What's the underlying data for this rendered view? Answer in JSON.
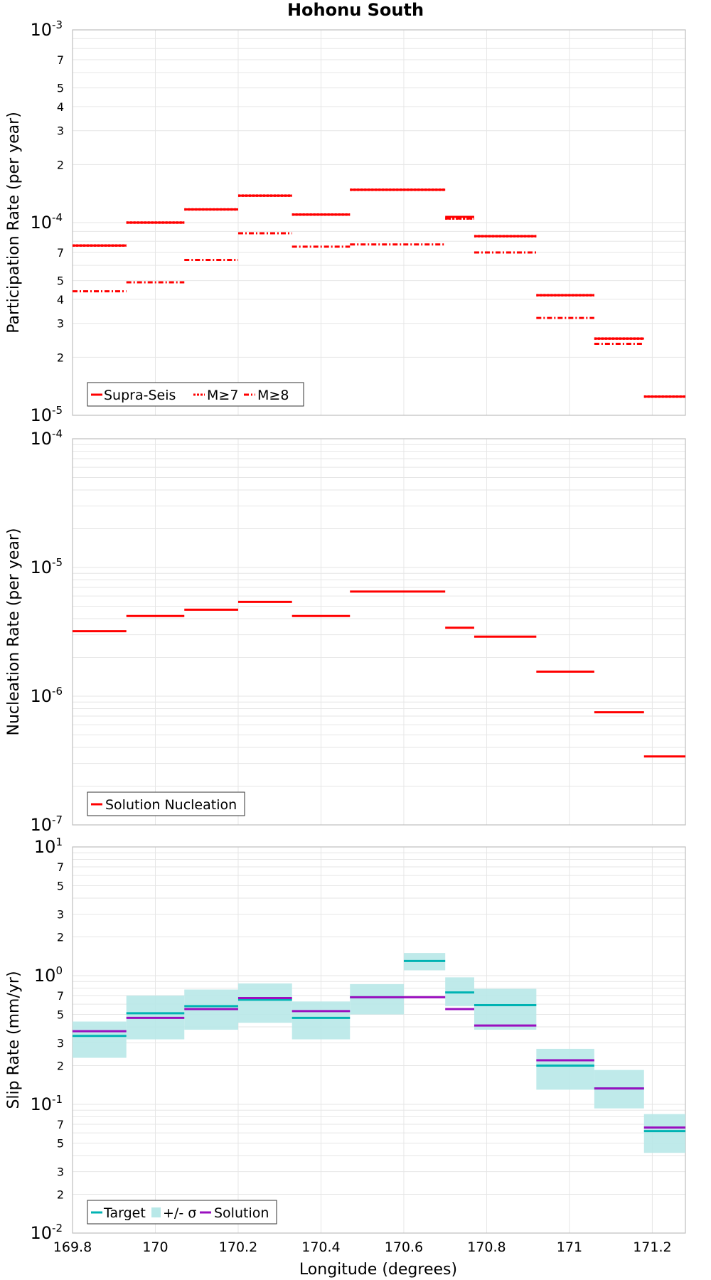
{
  "title": "Hohonu South",
  "xlabel": "Longitude (degrees)",
  "colors": {
    "supra": "#ff0000",
    "target": "#00b3b3",
    "sigma": "#b8e8e8",
    "solution": "#9a0fbf"
  },
  "chart_data": [
    {
      "type": "line",
      "title": "Hohonu South",
      "ylabel": "Participation Rate (per year)",
      "xlim": [
        169.8,
        171.28
      ],
      "ylim": [
        1e-05,
        0.001
      ],
      "y_scale": "log",
      "x_ticks": [
        "169.8",
        "170",
        "170.2",
        "170.4",
        "170.6",
        "170.8",
        "171",
        "171.2"
      ],
      "legend": [
        "Supra-Seis",
        "M≥7",
        "M≥8"
      ],
      "legend_position": "bottom-left",
      "grid": true,
      "segments_x": [
        [
          169.8,
          169.93
        ],
        [
          169.93,
          170.07
        ],
        [
          170.07,
          170.2
        ],
        [
          170.2,
          170.33
        ],
        [
          170.33,
          170.47
        ],
        [
          170.47,
          170.7
        ],
        [
          170.7,
          170.77
        ],
        [
          170.77,
          170.92
        ],
        [
          170.92,
          171.06
        ],
        [
          171.06,
          171.18
        ],
        [
          171.18,
          171.28
        ]
      ],
      "series": [
        {
          "name": "Supra-Seis",
          "style": "solid",
          "values": [
            7.6e-05,
            0.0001,
            0.000117,
            0.000138,
            0.00011,
            0.000148,
            0.000107,
            8.5e-05,
            4.2e-05,
            2.5e-05,
            1.25e-05
          ]
        },
        {
          "name": "M≥7",
          "style": "dotted",
          "values": [
            7.6e-05,
            0.0001,
            0.000117,
            0.000138,
            0.00011,
            0.000148,
            0.000105,
            8.5e-05,
            4.2e-05,
            2.5e-05,
            1.25e-05
          ]
        },
        {
          "name": "M≥8",
          "style": "dashdot",
          "values": [
            4.4e-05,
            4.9e-05,
            6.4e-05,
            8.8e-05,
            7.5e-05,
            7.7e-05,
            0.000105,
            7e-05,
            3.2e-05,
            2.35e-05,
            null
          ]
        }
      ]
    },
    {
      "type": "line",
      "ylabel": "Nucleation Rate (per year)",
      "xlim": [
        169.8,
        171.28
      ],
      "ylim": [
        1e-07,
        0.0001
      ],
      "y_scale": "log",
      "legend": [
        "Solution Nucleation"
      ],
      "legend_position": "bottom-left",
      "grid": true,
      "segments_x": [
        [
          169.8,
          169.93
        ],
        [
          169.93,
          170.07
        ],
        [
          170.07,
          170.2
        ],
        [
          170.2,
          170.33
        ],
        [
          170.33,
          170.47
        ],
        [
          170.47,
          170.7
        ],
        [
          170.7,
          170.77
        ],
        [
          170.77,
          170.92
        ],
        [
          170.92,
          171.06
        ],
        [
          171.06,
          171.18
        ],
        [
          171.18,
          171.28
        ]
      ],
      "series": [
        {
          "name": "Solution Nucleation",
          "values": [
            3.2e-06,
            4.2e-06,
            4.7e-06,
            5.4e-06,
            4.2e-06,
            6.5e-06,
            3.4e-06,
            2.9e-06,
            1.55e-06,
            7.5e-07,
            3.4e-07
          ]
        }
      ]
    },
    {
      "type": "line",
      "ylabel": "Slip Rate (mm/yr)",
      "xlabel": "Longitude (degrees)",
      "xlim": [
        169.8,
        171.28
      ],
      "ylim": [
        0.01,
        10
      ],
      "y_scale": "log",
      "x_ticks": [
        "169.8",
        "170",
        "170.2",
        "170.4",
        "170.6",
        "170.8",
        "171",
        "171.2"
      ],
      "legend": [
        "Target",
        "+/- σ",
        "Solution"
      ],
      "legend_position": "bottom-left",
      "grid": true,
      "segments_x": [
        [
          169.8,
          169.93
        ],
        [
          169.93,
          170.07
        ],
        [
          170.07,
          170.2
        ],
        [
          170.2,
          170.33
        ],
        [
          170.33,
          170.47
        ],
        [
          170.47,
          170.7
        ],
        [
          170.7,
          170.77
        ],
        [
          170.77,
          170.92
        ],
        [
          170.92,
          171.06
        ],
        [
          171.06,
          171.18
        ],
        [
          171.18,
          171.28
        ]
      ],
      "segments_x_sigma": [
        [
          169.8,
          169.93
        ],
        [
          169.93,
          170.07
        ],
        [
          170.07,
          170.2
        ],
        [
          170.2,
          170.33
        ],
        [
          170.33,
          170.47
        ],
        [
          170.47,
          170.6
        ],
        [
          170.6,
          170.7
        ],
        [
          170.7,
          170.77
        ],
        [
          170.77,
          170.92
        ],
        [
          170.92,
          171.06
        ],
        [
          171.06,
          171.18
        ],
        [
          171.18,
          171.28
        ]
      ],
      "target": [
        0.34,
        0.51,
        0.58,
        0.65,
        0.47,
        0.68,
        1.3,
        0.74,
        0.59,
        0.2,
        0.133,
        0.062
      ],
      "sigma_low": [
        0.23,
        0.32,
        0.38,
        0.43,
        0.32,
        0.5,
        1.1,
        0.58,
        0.38,
        0.13,
        0.093,
        0.042
      ],
      "sigma_high": [
        0.44,
        0.7,
        0.78,
        0.87,
        0.63,
        0.86,
        1.5,
        0.97,
        0.79,
        0.27,
        0.185,
        0.084
      ],
      "solution": [
        0.37,
        0.47,
        0.55,
        0.67,
        0.53,
        0.68,
        0.55,
        0.41,
        0.22,
        0.133,
        0.066
      ]
    }
  ]
}
